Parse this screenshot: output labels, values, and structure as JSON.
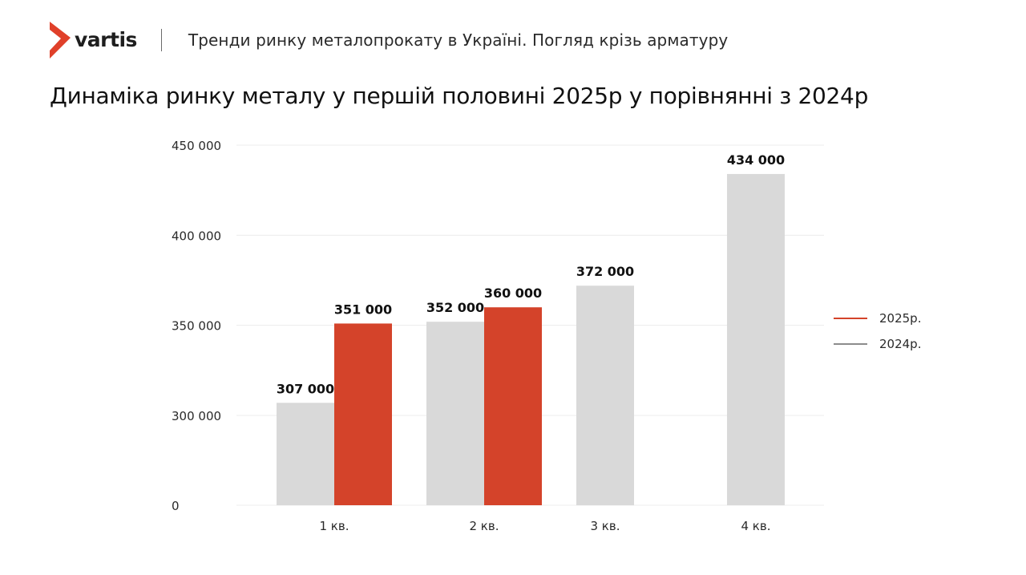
{
  "header": {
    "logo_text": "vartis",
    "report_title": "Тренди ринку металопрокату в Україні. Погляд крізь арматуру"
  },
  "page_title": "Динаміка ринку металу у першій половині 2025р у порівнянні з 2024р",
  "colors": {
    "brand": "#e0402a",
    "series_2025": "#d4432a",
    "series_2024": "#d9d9d9",
    "legend_2024_line": "#8c8c8c",
    "gridline": "#ececec",
    "axis_text": "#2a2a2a"
  },
  "chart_data": {
    "type": "bar",
    "title": "Динаміка ринку металу у першій половині 2025р у порівнянні з 2024р",
    "xlabel": "",
    "ylabel": "",
    "categories": [
      "1 кв.",
      "2 кв.",
      "3 кв.",
      "4 кв."
    ],
    "series": [
      {
        "name": "2024р.",
        "values": [
          307000,
          352000,
          372000,
          434000
        ],
        "labels": [
          "307 000",
          "352 000",
          "372 000",
          "434 000"
        ]
      },
      {
        "name": "2025р.",
        "values": [
          351000,
          360000,
          null,
          null
        ],
        "labels": [
          "351 000",
          "360 000",
          null,
          null
        ]
      }
    ],
    "y_ticks": [
      {
        "value": 0,
        "label": "0"
      },
      {
        "value": 300000,
        "label": "300 000"
      },
      {
        "value": 350000,
        "label": "350 000"
      },
      {
        "value": 400000,
        "label": "400 000"
      },
      {
        "value": 450000,
        "label": "450 000"
      }
    ],
    "ylim": [
      0,
      450000
    ],
    "axis_break": "0 → 300 000",
    "grid": true,
    "legend_position": "right",
    "legend": [
      {
        "name": "2025р."
      },
      {
        "name": "2024р."
      }
    ]
  }
}
